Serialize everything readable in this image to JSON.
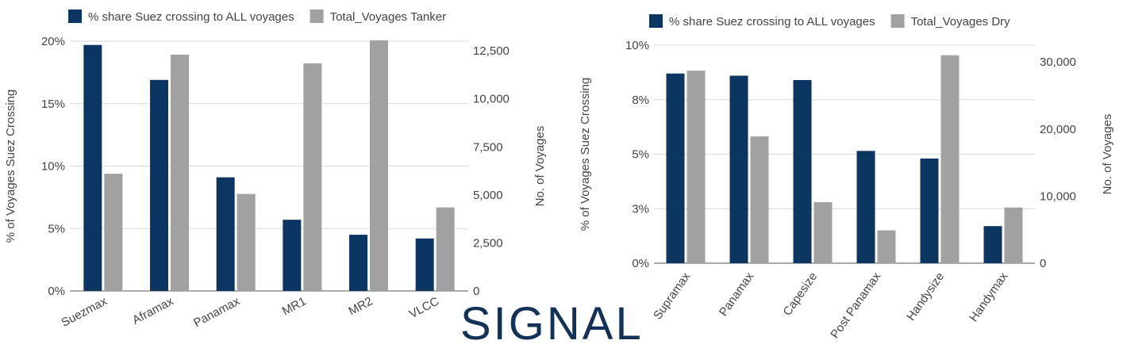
{
  "colors": {
    "primary": "#0b3562",
    "secondary": "#a1a1a1",
    "grid": "#d9d9d9",
    "text": "#444444",
    "logo": "#12325a"
  },
  "logo": {
    "text": "SIGNAL"
  },
  "chart_data": [
    {
      "type": "bar",
      "categories": [
        "Suezmax",
        "Aframax",
        "Panamax",
        "MR1",
        "MR2",
        "VLCC"
      ],
      "series": [
        {
          "name": "% share Suez crossing to ALL voyages",
          "axis": "left",
          "values": [
            19.7,
            16.9,
            9.1,
            5.7,
            4.5,
            4.2
          ]
        },
        {
          "name": "Total_Voyages Tanker",
          "axis": "right",
          "values": [
            6100,
            12300,
            5050,
            11850,
            13050,
            4350
          ]
        }
      ],
      "ylabel": "% of Voyages Suez Crossing",
      "y2label": "No. of  Voyages",
      "ylim": [
        0,
        20
      ],
      "y2lim": [
        0,
        13000
      ],
      "yticks": [
        "0%",
        "5%",
        "10%",
        "15%",
        "20%"
      ],
      "y2ticks": [
        "0",
        "2,500",
        "5,000",
        "7,500",
        "10,000",
        "12,500"
      ],
      "legend": "top",
      "grid": true
    },
    {
      "type": "bar",
      "categories": [
        "Supramax",
        "Panamax",
        "Capesize",
        "Post Panamax",
        "Handysize",
        "Handymax"
      ],
      "series": [
        {
          "name": "% share Suez crossing to ALL voyages",
          "axis": "left",
          "values": [
            8.7,
            8.6,
            8.4,
            5.15,
            4.8,
            1.7
          ]
        },
        {
          "name": "Total_Voyages Dry",
          "axis": "right",
          "values": [
            28700,
            18900,
            9100,
            4900,
            31000,
            8300
          ]
        }
      ],
      "ylabel": "% of Voyages Suez Crossing",
      "y2label": "No. of  Voyages",
      "ylim": [
        0,
        10
      ],
      "y2lim": [
        0,
        32500
      ],
      "yticks": [
        "0%",
        "3%",
        "5%",
        "8%",
        "10%"
      ],
      "y2ticks": [
        "0",
        "10,000",
        "20,000",
        "30,000"
      ],
      "legend": "top",
      "grid": true
    }
  ]
}
